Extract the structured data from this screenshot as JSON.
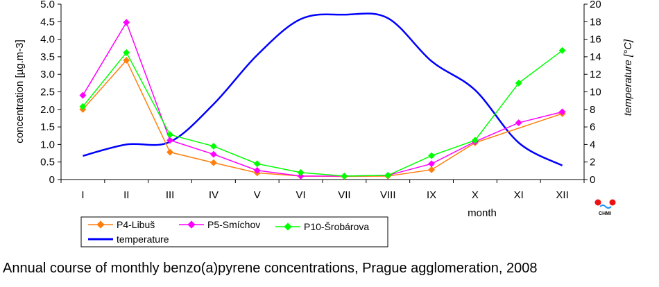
{
  "chart_data": {
    "type": "line",
    "title": "",
    "caption": "Annual course of monthly benzo(a)pyrene concentrations, Prague agglomeration, 2008",
    "xlabel": "month",
    "ylabel": "concentration [µg.m-3]",
    "y2label": "temperature [°C]",
    "categories": [
      "I",
      "II",
      "III",
      "IV",
      "V",
      "VI",
      "VII",
      "VIII",
      "IX",
      "X",
      "XI",
      "XII"
    ],
    "ylim": [
      0,
      5
    ],
    "yticks": [
      "0",
      "0.5",
      "1.0",
      "1.5",
      "2.0",
      "2.5",
      "3.0",
      "3.5",
      "4.0",
      "4.5",
      "5.0"
    ],
    "y2lim": [
      0,
      20
    ],
    "y2ticks": [
      "0",
      "2",
      "4",
      "6",
      "8",
      "10",
      "12",
      "14",
      "16",
      "18",
      "20"
    ],
    "grid": false,
    "legend_position": "bottom-left",
    "logo_text": "CHMI",
    "series": [
      {
        "name": "P4-Libuš",
        "axis": "left",
        "color": "#ff7f0e",
        "values": [
          2.0,
          3.4,
          0.78,
          0.48,
          0.19,
          0.1,
          0.09,
          0.1,
          0.28,
          1.05,
          null,
          1.88
        ]
      },
      {
        "name": "P5-Smíchov",
        "axis": "left",
        "color": "#ff00ff",
        "values": [
          2.4,
          4.48,
          1.12,
          0.72,
          0.26,
          0.1,
          0.1,
          0.12,
          0.45,
          1.08,
          1.62,
          1.93
        ]
      },
      {
        "name": "P10-Šrobárova",
        "axis": "left",
        "color": "#00ff00",
        "values": [
          2.08,
          3.62,
          1.28,
          0.95,
          0.45,
          0.2,
          0.1,
          0.12,
          0.68,
          1.12,
          2.75,
          3.68
        ]
      },
      {
        "name": "temperature",
        "axis": "right",
        "color": "#0000ff",
        "smooth": true,
        "values": [
          2.7,
          4.0,
          4.3,
          8.6,
          14.2,
          18.3,
          18.8,
          18.4,
          13.5,
          10.2,
          4.2,
          1.6
        ]
      }
    ]
  }
}
